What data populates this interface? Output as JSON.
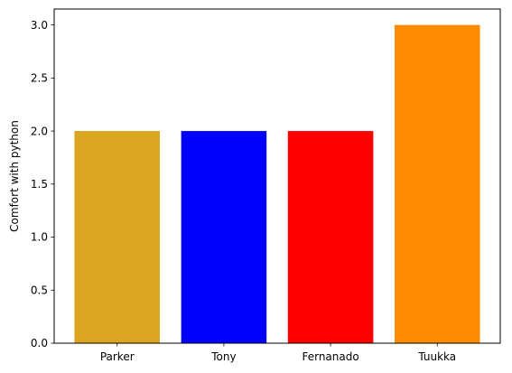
{
  "chart_data": {
    "type": "bar",
    "title": "",
    "xlabel": "",
    "ylabel": "Comfort with python",
    "categories": [
      "Parker",
      "Tony",
      "Fernanado",
      "Tuukka"
    ],
    "values": [
      2,
      2,
      2,
      3
    ],
    "colors": [
      "#DAA520",
      "#0000FF",
      "#FF0000",
      "#FF8C00"
    ],
    "ylim": [
      0,
      3.15
    ],
    "yticks": [
      0.0,
      0.5,
      1.0,
      1.5,
      2.0,
      2.5,
      3.0
    ],
    "ytick_labels": [
      "0.0",
      "0.5",
      "1.0",
      "1.5",
      "2.0",
      "2.5",
      "3.0"
    ],
    "grid": false,
    "legend": false
  }
}
